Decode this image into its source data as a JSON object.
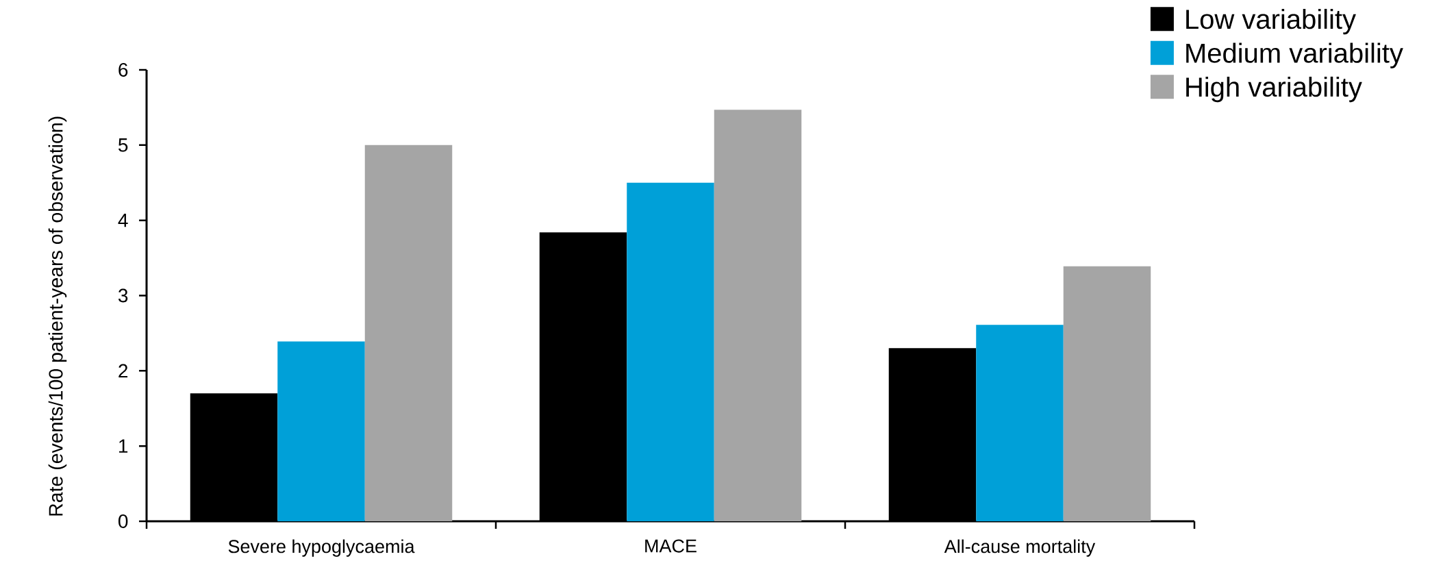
{
  "chart_data": {
    "type": "bar",
    "ylabel": "Rate (events/100 patient-years of observation)",
    "categories": [
      "Severe hypoglycaemia",
      "MACE",
      "All-cause mortality"
    ],
    "series": [
      {
        "name": "Low variability",
        "color": "#000000",
        "values": [
          1.7,
          3.84,
          2.3
        ]
      },
      {
        "name": "Medium variability",
        "color": "#00a0d8",
        "values": [
          2.39,
          4.5,
          2.61
        ]
      },
      {
        "name": "High variability",
        "color": "#a5a5a5",
        "values": [
          5.0,
          5.47,
          3.39
        ]
      }
    ],
    "ylim": [
      0,
      6
    ],
    "yticks": [
      0,
      1,
      2,
      3,
      4,
      5,
      6
    ],
    "legend": "top right"
  }
}
